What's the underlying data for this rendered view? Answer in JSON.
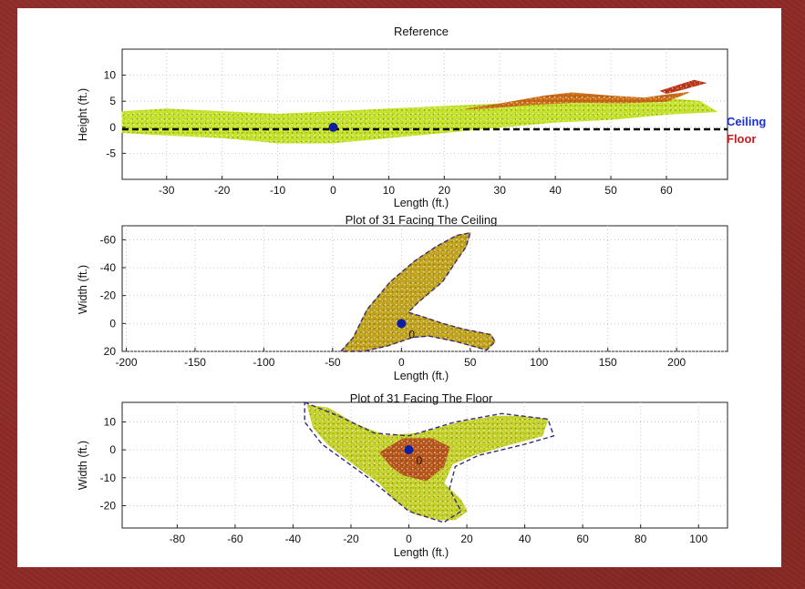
{
  "chart_data": [
    {
      "type": "scatter",
      "title": "Reference",
      "xlabel": "Length (ft.)",
      "ylabel": "Height (ft.)",
      "xlim": [
        -38,
        71
      ],
      "ylim": [
        -10,
        15
      ],
      "y_reversed": false,
      "x_ticks": [
        -30,
        -20,
        -10,
        0,
        10,
        20,
        30,
        40,
        50,
        60
      ],
      "y_ticks": [
        -5,
        0,
        5,
        10
      ],
      "grid": true,
      "legend": [
        {
          "label": "Ceiling",
          "color": "#1b2fd6"
        },
        {
          "label": "Floor",
          "color": "#c0201d"
        }
      ],
      "legend_position": "right",
      "reference_line": {
        "y": 0,
        "style": "dashed",
        "color": "#000000"
      },
      "marker_point": {
        "x": 0,
        "y": 0,
        "color": "#0d1e9e"
      },
      "point_regions": [
        {
          "name": "ceiling-band",
          "color": "#c2e32a",
          "outline": [
            [
              -38,
              3
            ],
            [
              -30,
              3.5
            ],
            [
              -20,
              3
            ],
            [
              -10,
              2.5
            ],
            [
              0,
              3
            ],
            [
              10,
              3.5
            ],
            [
              20,
              4
            ],
            [
              30,
              4.5
            ],
            [
              40,
              5
            ],
            [
              50,
              5.2
            ],
            [
              60,
              5.5
            ],
            [
              66,
              5
            ],
            [
              69,
              3
            ],
            [
              60,
              2.5
            ],
            [
              50,
              1.5
            ],
            [
              40,
              1
            ],
            [
              30,
              0
            ],
            [
              20,
              -1
            ],
            [
              10,
              -2
            ],
            [
              0,
              -3
            ],
            [
              -10,
              -3
            ],
            [
              -20,
              -2
            ],
            [
              -30,
              -1.5
            ],
            [
              -38,
              -1
            ]
          ]
        },
        {
          "name": "floor-band",
          "color": "#c96a16",
          "outline": [
            [
              24,
              3.5
            ],
            [
              30,
              4.5
            ],
            [
              38,
              6
            ],
            [
              43,
              6.6
            ],
            [
              50,
              6
            ],
            [
              56,
              5.6
            ],
            [
              60,
              6.2
            ],
            [
              64,
              6.7
            ],
            [
              60,
              5
            ],
            [
              52,
              4.7
            ],
            [
              44,
              4.8
            ],
            [
              36,
              4.4
            ],
            [
              28,
              3.7
            ]
          ]
        },
        {
          "name": "floor-band-top",
          "color": "#b9331a",
          "outline": [
            [
              59,
              7
            ],
            [
              62,
              8
            ],
            [
              65,
              9
            ],
            [
              67,
              8.5
            ],
            [
              63,
              7.3
            ],
            [
              60,
              6.5
            ]
          ]
        }
      ]
    },
    {
      "type": "scatter",
      "title": "Plot of 31 Facing The Ceiling",
      "xlabel": "Length (ft.)",
      "ylabel": "Width (ft.)",
      "xlim": [
        -203,
        237
      ],
      "ylim": [
        -70,
        20
      ],
      "y_reversed": true,
      "x_ticks": [
        -200,
        -150,
        -100,
        -50,
        0,
        50,
        100,
        150,
        200
      ],
      "y_ticks": [
        -60,
        -40,
        -20,
        0,
        20
      ],
      "grid": true,
      "origin_label": "0",
      "marker_point": {
        "x": 0,
        "y": 0,
        "color": "#0d1e9e"
      },
      "point_regions": [
        {
          "name": "ceiling-footprint",
          "color": "#bfa21d",
          "outline": [
            [
              -44,
              20
            ],
            [
              -35,
              10
            ],
            [
              -25,
              -10
            ],
            [
              -8,
              -30
            ],
            [
              10,
              -45
            ],
            [
              25,
              -55
            ],
            [
              40,
              -63
            ],
            [
              50,
              -65
            ],
            [
              47,
              -55
            ],
            [
              40,
              -45
            ],
            [
              30,
              -30
            ],
            [
              12,
              -15
            ],
            [
              5,
              -8
            ],
            [
              15,
              -5
            ],
            [
              30,
              0
            ],
            [
              45,
              4
            ],
            [
              65,
              8
            ],
            [
              68,
              13
            ],
            [
              62,
              19
            ],
            [
              40,
              13
            ],
            [
              20,
              9
            ],
            [
              8,
              10
            ],
            [
              -10,
              16
            ],
            [
              -28,
              20
            ]
          ]
        }
      ],
      "boundary_outline": [
        [
          -44,
          20
        ],
        [
          -35,
          10
        ],
        [
          -25,
          -10
        ],
        [
          -8,
          -30
        ],
        [
          10,
          -45
        ],
        [
          25,
          -55
        ],
        [
          40,
          -63
        ],
        [
          50,
          -65
        ],
        [
          47,
          -55
        ],
        [
          40,
          -45
        ],
        [
          30,
          -30
        ],
        [
          12,
          -15
        ],
        [
          5,
          -8
        ],
        [
          15,
          -5
        ],
        [
          30,
          0
        ],
        [
          45,
          4
        ],
        [
          65,
          8
        ],
        [
          68,
          13
        ],
        [
          62,
          19
        ],
        [
          40,
          13
        ],
        [
          20,
          9
        ],
        [
          8,
          10
        ],
        [
          -10,
          16
        ],
        [
          -28,
          20
        ]
      ]
    },
    {
      "type": "scatter",
      "title": "Plot of 31 Facing The Floor",
      "xlabel": "Length (ft.)",
      "ylabel": "Width (ft.)",
      "xlim": [
        -99,
        110
      ],
      "ylim": [
        -28,
        17
      ],
      "y_reversed": false,
      "x_ticks": [
        -80,
        -60,
        -40,
        -20,
        0,
        20,
        40,
        60,
        80,
        100
      ],
      "y_ticks": [
        -20,
        -10,
        0,
        10
      ],
      "grid": true,
      "origin_label": "0",
      "marker_point": {
        "x": 0,
        "y": 0,
        "color": "#0d1e9e"
      },
      "point_regions": [
        {
          "name": "floor-footprint",
          "color": "#c3d22a",
          "outline": [
            [
              -35,
              16
            ],
            [
              -28,
              15
            ],
            [
              -18,
              9
            ],
            [
              -8,
              5
            ],
            [
              4,
              6
            ],
            [
              18,
              10
            ],
            [
              30,
              12
            ],
            [
              38,
              12
            ],
            [
              48,
              11
            ],
            [
              46,
              5
            ],
            [
              35,
              2
            ],
            [
              22,
              -2
            ],
            [
              15,
              -5
            ],
            [
              12,
              -12
            ],
            [
              18,
              -18
            ],
            [
              20,
              -22
            ],
            [
              16,
              -25
            ],
            [
              10,
              -25
            ],
            [
              2,
              -23
            ],
            [
              -5,
              -18
            ],
            [
              -10,
              -12
            ],
            [
              -18,
              -6
            ],
            [
              -28,
              2
            ],
            [
              -33,
              8
            ]
          ]
        },
        {
          "name": "floor-footprint-core",
          "color": "#b5531b",
          "outline": [
            [
              -10,
              -1
            ],
            [
              -2,
              4
            ],
            [
              8,
              4
            ],
            [
              14,
              1
            ],
            [
              12,
              -6
            ],
            [
              6,
              -11
            ],
            [
              -2,
              -9
            ],
            [
              -6,
              -6
            ]
          ]
        }
      ],
      "boundary_outline": [
        [
          -36,
          17
        ],
        [
          -24,
          12
        ],
        [
          -12,
          6
        ],
        [
          0,
          5
        ],
        [
          16,
          10
        ],
        [
          32,
          13
        ],
        [
          48,
          11
        ],
        [
          50,
          5
        ],
        [
          40,
          2
        ],
        [
          24,
          -2
        ],
        [
          16,
          -6
        ],
        [
          14,
          -14
        ],
        [
          18,
          -22
        ],
        [
          12,
          -26
        ],
        [
          0,
          -22
        ],
        [
          -14,
          -10
        ],
        [
          -30,
          2
        ],
        [
          -36,
          10
        ]
      ]
    }
  ]
}
